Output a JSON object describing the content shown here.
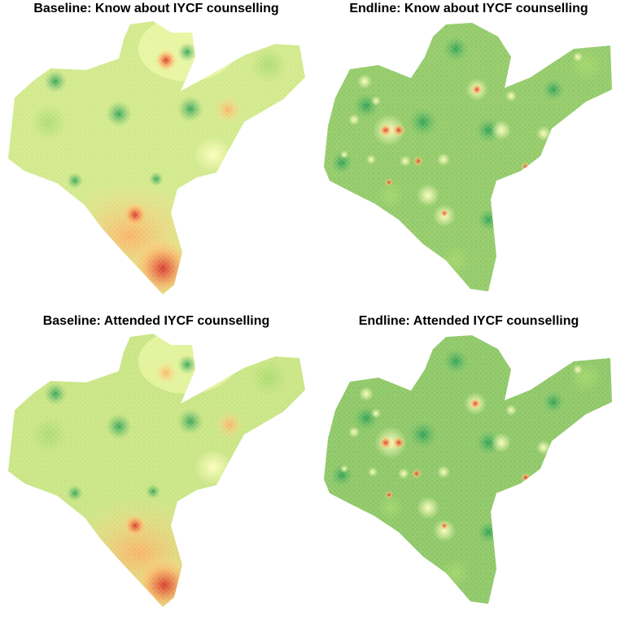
{
  "panels": [
    {
      "title": "Baseline: Know about IYCF counselling"
    },
    {
      "title": "Endline: Know about IYCF counselling"
    },
    {
      "title": "Baseline: Attended IYCF counselling"
    },
    {
      "title": "Endline: Attended IYCF counselling"
    }
  ],
  "colors": {
    "low": "#d73027",
    "mid": "#ffffbf",
    "high": "#1a9850",
    "base_fill_baseline": "#cfe68a",
    "base_fill_endline": "#8fc866"
  }
}
